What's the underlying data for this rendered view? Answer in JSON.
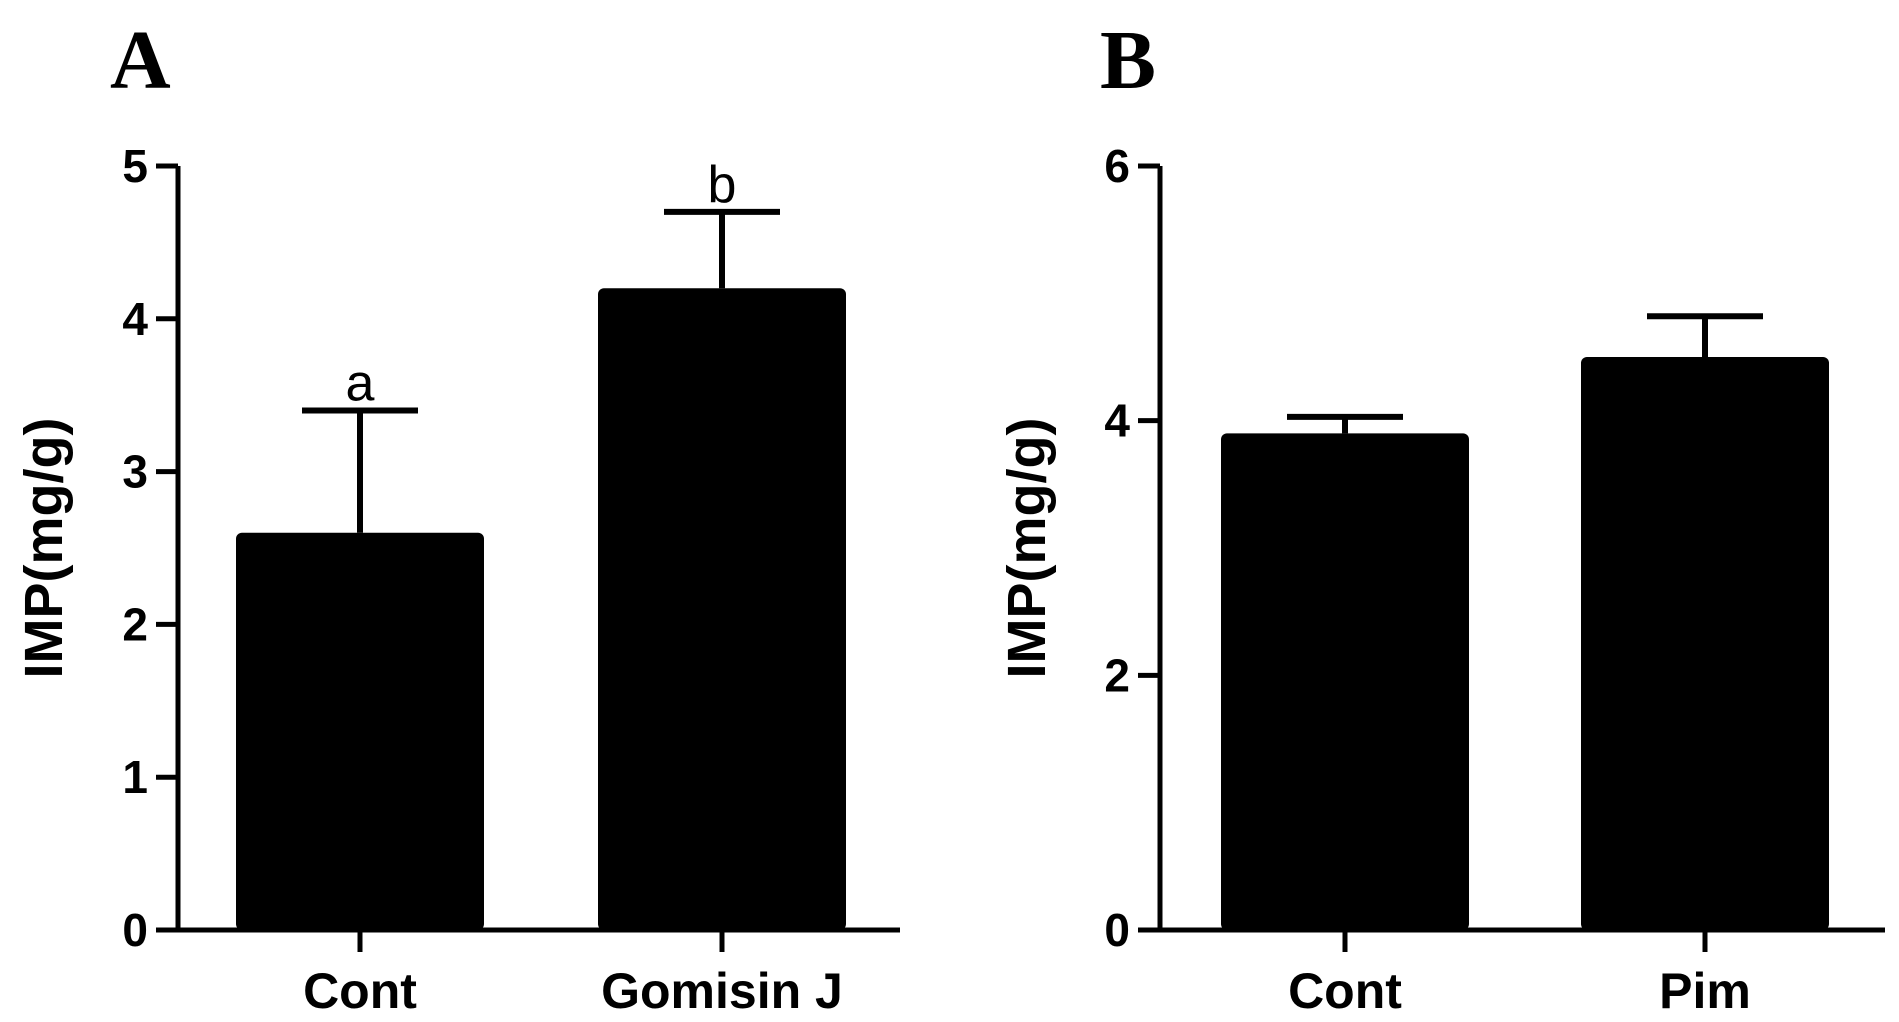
{
  "chart_data": [
    {
      "type": "bar",
      "panel": "A",
      "categories": [
        "Cont",
        "Gomisin J"
      ],
      "values": [
        2.6,
        4.2
      ],
      "errors": [
        0.8,
        0.5
      ],
      "annotations": [
        "a",
        "b"
      ],
      "ylabel": "IMP(mg/g)",
      "ylim": [
        0,
        5
      ],
      "yticks": [
        0,
        1,
        2,
        3,
        4,
        5
      ],
      "bar_color": "#000000"
    },
    {
      "type": "bar",
      "panel": "B",
      "categories": [
        "Cont",
        "Pim"
      ],
      "values": [
        3.9,
        4.5
      ],
      "errors": [
        0.13,
        0.32
      ],
      "annotations": [
        "",
        ""
      ],
      "ylabel": "IMP(mg/g)",
      "ylim": [
        0,
        6
      ],
      "yticks": [
        0,
        2,
        4,
        6
      ],
      "bar_color": "#000000"
    }
  ]
}
